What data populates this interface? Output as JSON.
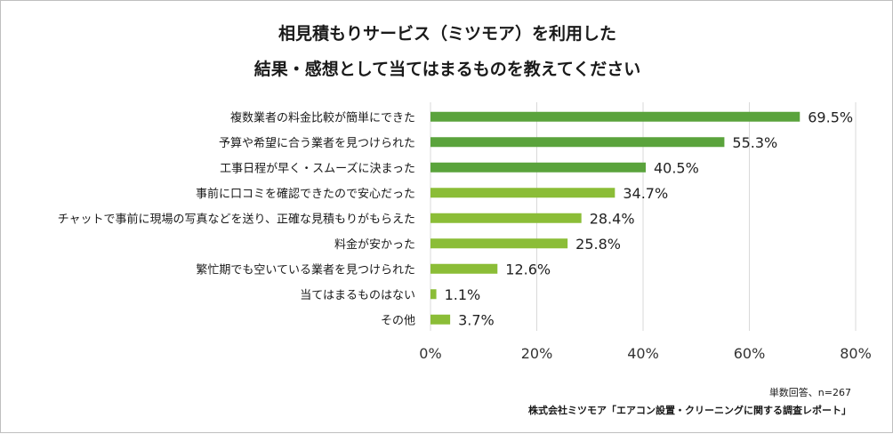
{
  "chart_data": {
    "type": "bar",
    "orientation": "horizontal",
    "title_lines": [
      "相見積もりサービス（ミツモア）を利用した",
      "結果・感想として当てはまるものを教えてください"
    ],
    "categories": [
      "複数業者の料金比較が簡単にできた",
      "予算や希望に合う業者を見つけられた",
      "工事日程が早く・スムーズに決まった",
      "事前に口コミを確認できたので安心だった",
      "チャットで事前に現場の写真などを送り、正確な見積もりがもらえた",
      "料金が安かった",
      "繁忙期でも空いている業者を見つけられた",
      "当てはまるものはない",
      "その他"
    ],
    "values": [
      69.5,
      55.3,
      40.5,
      34.7,
      28.4,
      25.8,
      12.6,
      1.1,
      3.7
    ],
    "value_labels": [
      "69.5%",
      "55.3%",
      "40.5%",
      "34.7%",
      "28.4%",
      "25.8%",
      "12.6%",
      "1.1%",
      "3.7%"
    ],
    "bar_colors": [
      "#5aa33c",
      "#5aa33c",
      "#5aa33c",
      "#8bbd37",
      "#8bbd37",
      "#8bbd37",
      "#8bbd37",
      "#8bbd37",
      "#8bbd37"
    ],
    "xlim": [
      0,
      80
    ],
    "xticks": [
      0,
      20,
      40,
      60,
      80
    ],
    "xtick_labels": [
      "0%",
      "20%",
      "40%",
      "60%",
      "80%"
    ],
    "grid": true,
    "gridline_color": "#d9d9d9",
    "xlabel": "",
    "ylabel": ""
  },
  "footnote": {
    "sample": "単数回答、n=267",
    "source": "株式会社ミツモア「エアコン設置・クリーニングに関する調査レポート」"
  }
}
